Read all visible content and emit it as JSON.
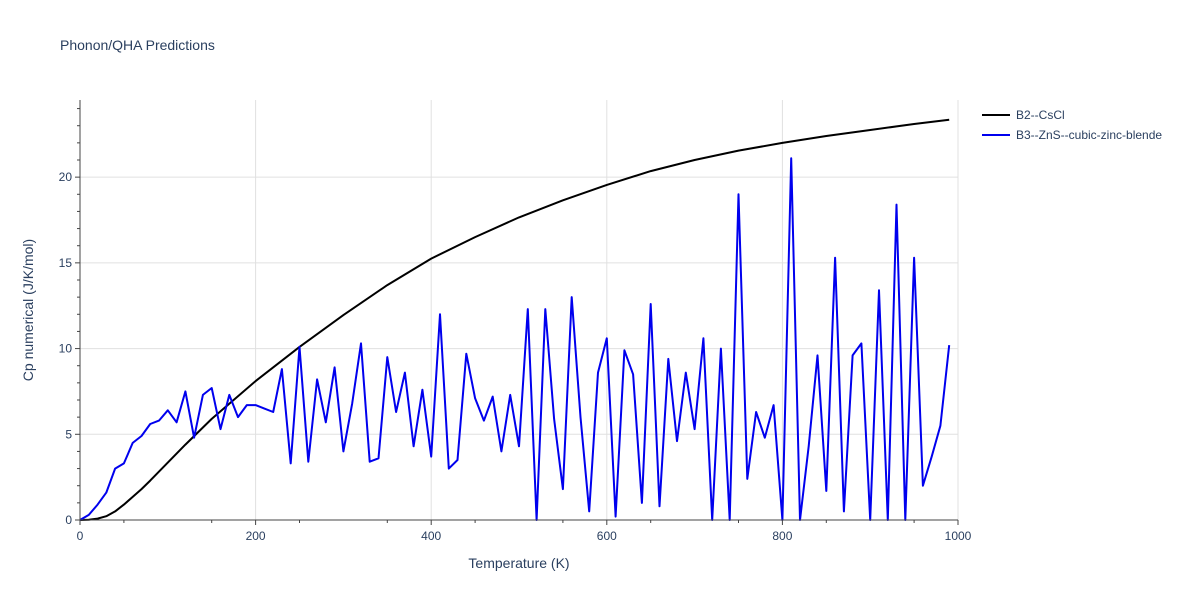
{
  "chart_data": {
    "type": "line",
    "title": "Phonon/QHA Predictions",
    "xlabel": "Temperature (K)",
    "ylabel": "Cp numerical (J/K/mol)",
    "xlim": [
      0,
      1000
    ],
    "ylim": [
      0,
      24.5
    ],
    "xticks": [
      0,
      200,
      400,
      600,
      800,
      1000
    ],
    "yticks": [
      0,
      5,
      10,
      15,
      20
    ],
    "grid": true,
    "legend_position": "top-right",
    "series": [
      {
        "name": "B2--CsCl",
        "color": "#000000",
        "x": [
          0,
          10,
          20,
          30,
          40,
          50,
          60,
          70,
          80,
          100,
          120,
          150,
          200,
          250,
          300,
          350,
          400,
          450,
          500,
          550,
          600,
          650,
          700,
          750,
          800,
          850,
          900,
          950,
          990
        ],
        "y": [
          0,
          0.02,
          0.08,
          0.22,
          0.5,
          0.9,
          1.35,
          1.8,
          2.3,
          3.35,
          4.4,
          5.9,
          8.1,
          10.1,
          11.95,
          13.7,
          15.25,
          16.5,
          17.65,
          18.65,
          19.55,
          20.35,
          21.0,
          21.55,
          22.0,
          22.4,
          22.75,
          23.1,
          23.35
        ]
      },
      {
        "name": "B3--ZnS--cubic-zinc-blende",
        "color": "#0000ee",
        "x": [
          0,
          10,
          20,
          30,
          40,
          50,
          60,
          70,
          80,
          90,
          100,
          110,
          120,
          130,
          140,
          150,
          160,
          170,
          180,
          190,
          200,
          210,
          220,
          230,
          240,
          250,
          260,
          270,
          280,
          290,
          300,
          310,
          320,
          330,
          340,
          350,
          360,
          370,
          380,
          390,
          400,
          410,
          420,
          430,
          440,
          450,
          460,
          470,
          480,
          490,
          500,
          510,
          520,
          530,
          540,
          550,
          560,
          570,
          580,
          590,
          600,
          610,
          620,
          630,
          640,
          650,
          660,
          670,
          680,
          690,
          700,
          710,
          720,
          730,
          740,
          750,
          760,
          770,
          780,
          790,
          800,
          810,
          820,
          830,
          840,
          850,
          860,
          870,
          880,
          890,
          900,
          910,
          920,
          930,
          940,
          950,
          960,
          970,
          980,
          990
        ],
        "y": [
          0,
          0.3,
          0.9,
          1.6,
          3.0,
          3.3,
          4.5,
          4.9,
          5.6,
          5.8,
          6.4,
          5.7,
          7.5,
          4.8,
          7.3,
          7.7,
          5.3,
          7.3,
          6.0,
          6.7,
          6.7,
          6.5,
          6.3,
          8.8,
          3.3,
          10.1,
          3.4,
          8.2,
          5.7,
          8.9,
          4.0,
          6.8,
          10.3,
          3.4,
          3.6,
          9.5,
          6.3,
          8.6,
          4.3,
          7.6,
          3.7,
          12.0,
          3.0,
          3.5,
          9.7,
          7.1,
          5.8,
          7.2,
          4.0,
          7.3,
          4.3,
          12.3,
          0,
          12.3,
          5.9,
          1.8,
          13.0,
          6.0,
          0.5,
          8.6,
          10.6,
          0.2,
          9.9,
          8.5,
          1.0,
          12.6,
          0.8,
          9.4,
          4.6,
          8.6,
          5.3,
          10.6,
          0,
          10.0,
          0,
          19.0,
          2.4,
          6.3,
          4.8,
          6.7,
          0,
          21.1,
          0,
          4.3,
          9.6,
          1.7,
          15.3,
          0.5,
          9.6,
          10.3,
          0,
          13.4,
          0,
          18.4,
          0,
          15.3,
          2.0,
          3.7,
          5.5,
          10.2
        ]
      }
    ]
  }
}
